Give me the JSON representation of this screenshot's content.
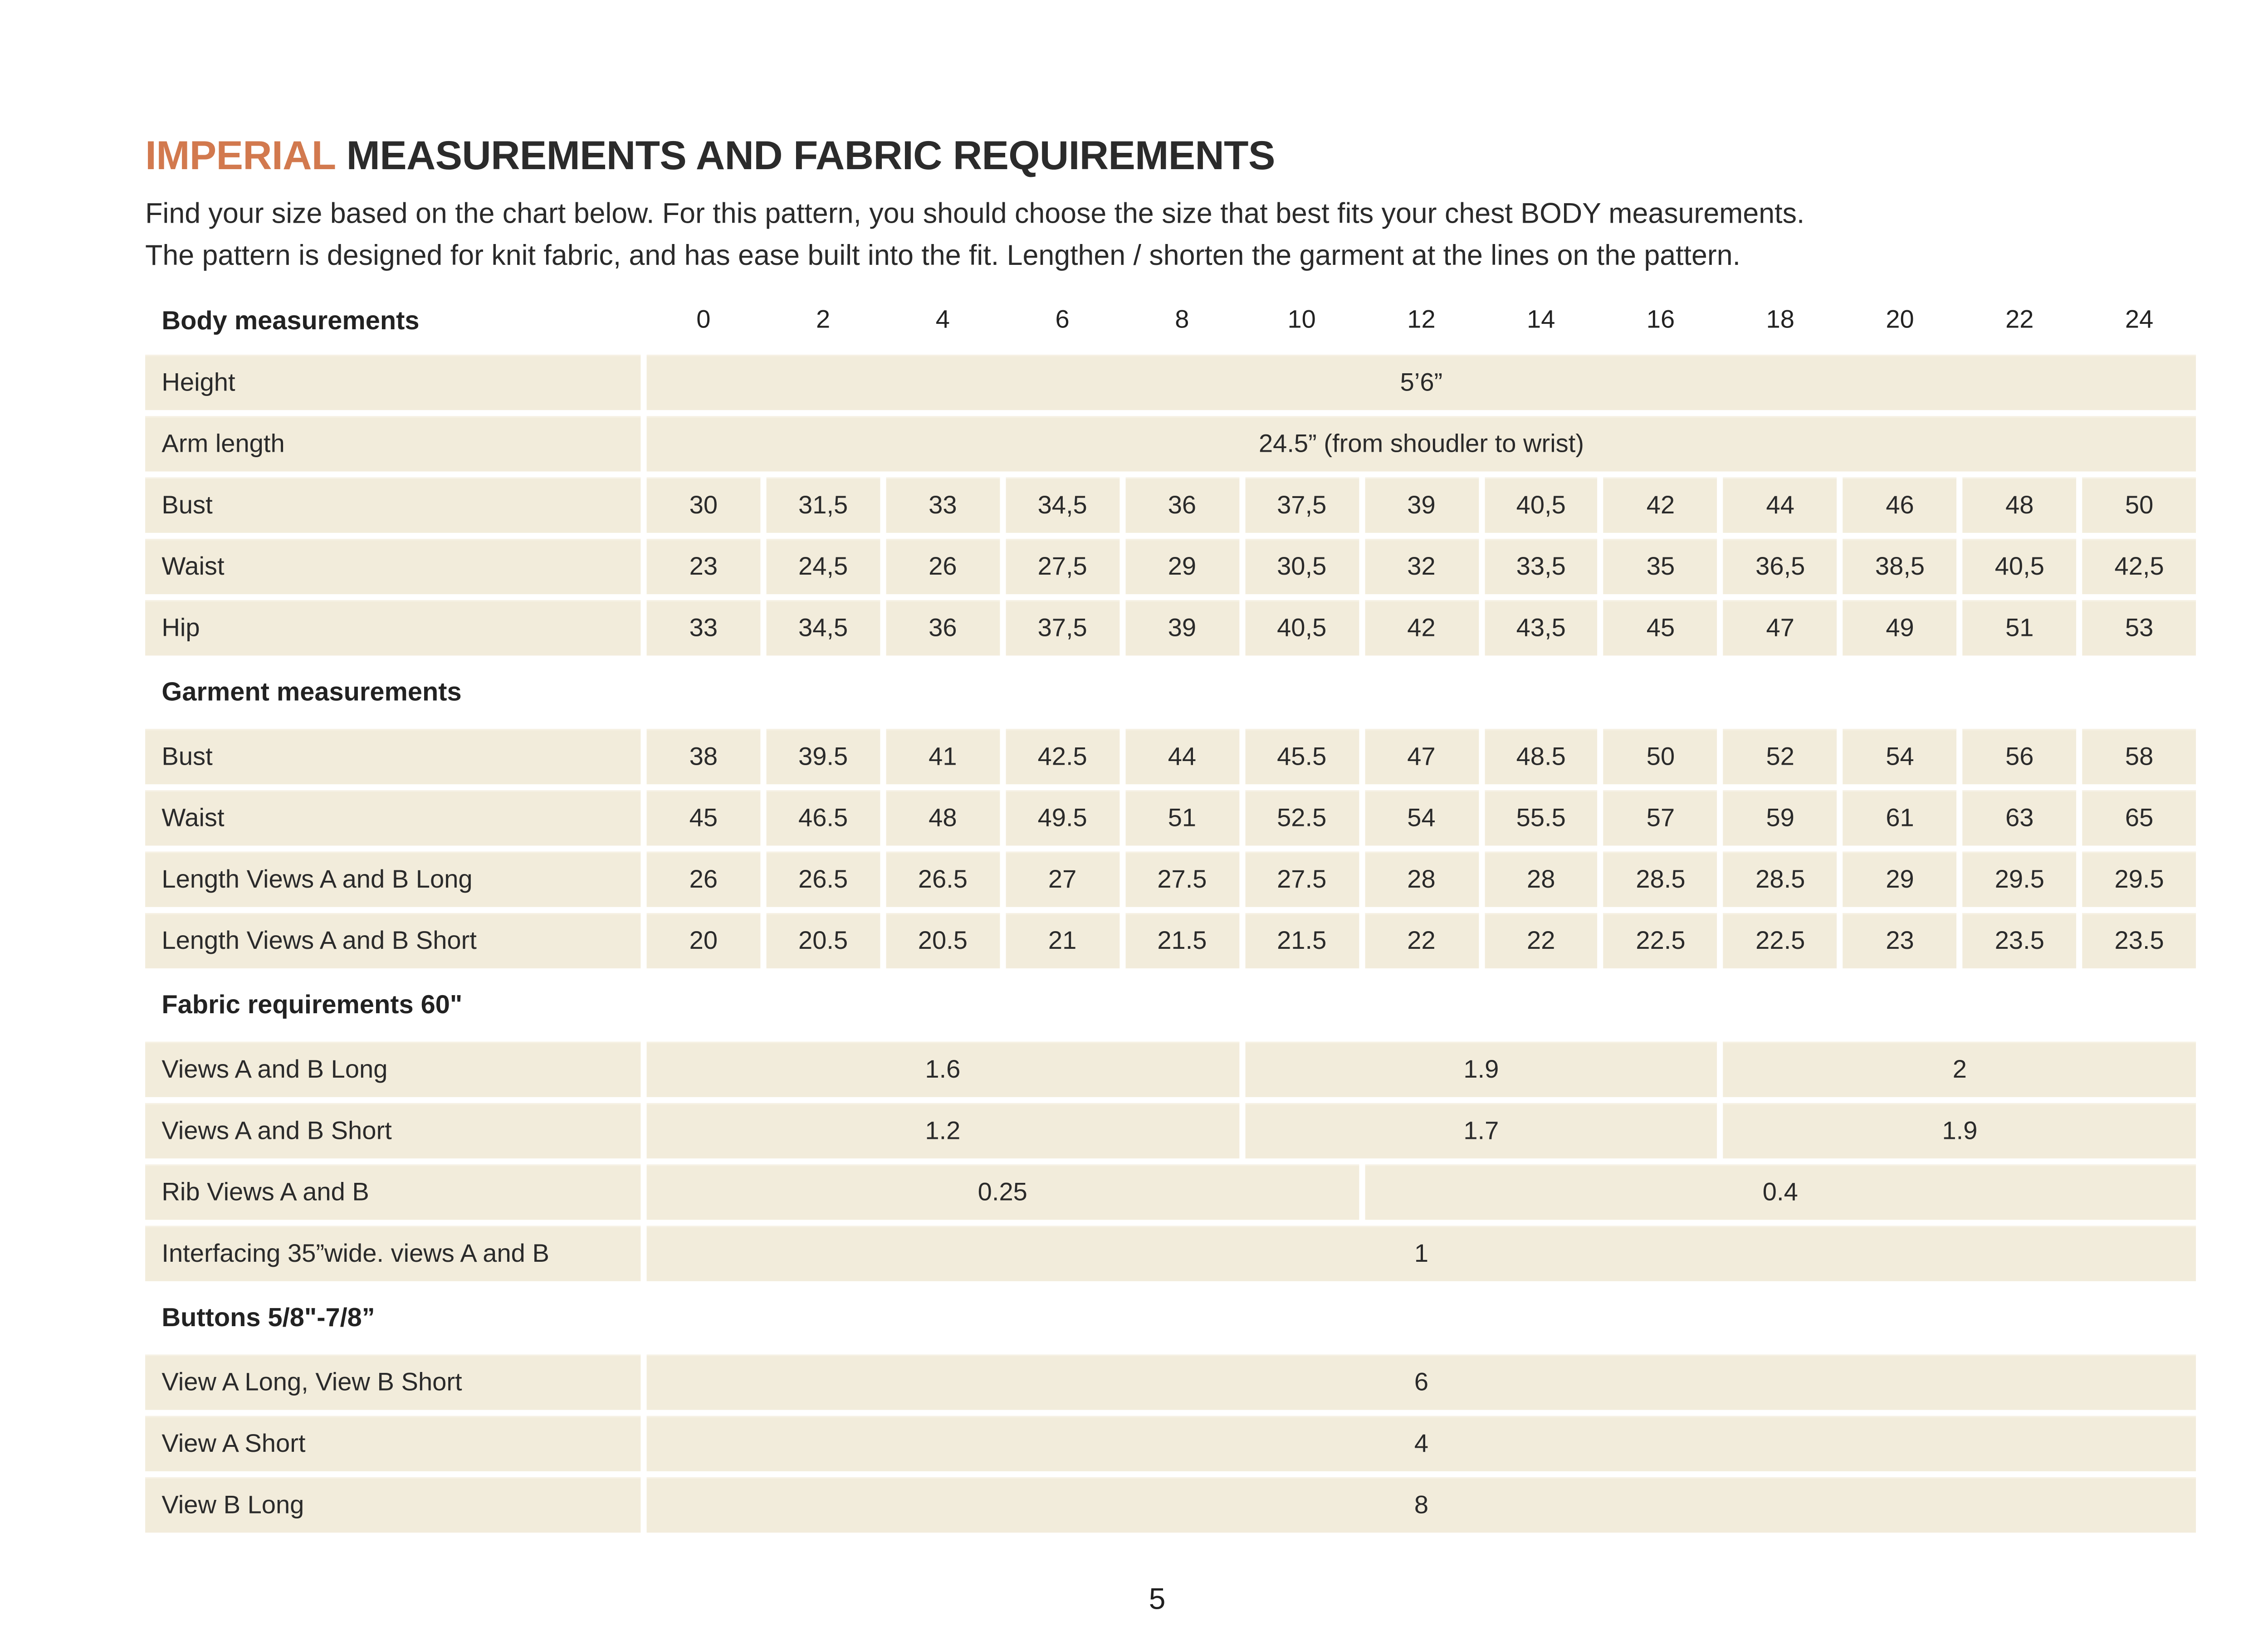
{
  "header": {
    "title_highlight": "IMPERIAL",
    "title_rest": "MEASUREMENTS AND FABRIC REQUIREMENTS",
    "intro_line1": "Find your size based on the chart below. For this pattern, you should choose the size that best fits your chest BODY measurements.",
    "intro_line2": "The pattern is designed for knit fabric, and has ease built into the fit. Lengthen / shorten the garment at the lines on the pattern."
  },
  "colors": {
    "accent_orange": "#d2794e",
    "cell_cream": "#f2ecdb",
    "text": "#1f1f1f"
  },
  "table": {
    "header": {
      "label": "Body measurements",
      "sizes": [
        "0",
        "2",
        "4",
        "6",
        "8",
        "10",
        "12",
        "14",
        "16",
        "18",
        "20",
        "22",
        "24"
      ]
    },
    "rows": [
      {
        "label": "Height",
        "cells": [
          {
            "text": "5’6”",
            "span": 13
          }
        ]
      },
      {
        "label": "Arm length",
        "cells": [
          {
            "text": "24.5” (from shoudler to wrist)",
            "span": 13
          }
        ]
      },
      {
        "label": "Bust",
        "cells": [
          {
            "text": "30"
          },
          {
            "text": "31,5"
          },
          {
            "text": "33"
          },
          {
            "text": "34,5"
          },
          {
            "text": "36"
          },
          {
            "text": "37,5"
          },
          {
            "text": "39"
          },
          {
            "text": "40,5"
          },
          {
            "text": "42"
          },
          {
            "text": "44"
          },
          {
            "text": "46"
          },
          {
            "text": "48"
          },
          {
            "text": "50"
          }
        ]
      },
      {
        "label": "Waist",
        "cells": [
          {
            "text": "23"
          },
          {
            "text": "24,5"
          },
          {
            "text": "26"
          },
          {
            "text": "27,5"
          },
          {
            "text": "29"
          },
          {
            "text": "30,5"
          },
          {
            "text": "32"
          },
          {
            "text": "33,5"
          },
          {
            "text": "35"
          },
          {
            "text": "36,5"
          },
          {
            "text": "38,5"
          },
          {
            "text": "40,5"
          },
          {
            "text": "42,5"
          }
        ]
      },
      {
        "label": "Hip",
        "cells": [
          {
            "text": "33"
          },
          {
            "text": "34,5"
          },
          {
            "text": "36"
          },
          {
            "text": "37,5"
          },
          {
            "text": "39"
          },
          {
            "text": "40,5"
          },
          {
            "text": "42"
          },
          {
            "text": "43,5"
          },
          {
            "text": "45"
          },
          {
            "text": "47"
          },
          {
            "text": "49"
          },
          {
            "text": "51"
          },
          {
            "text": "53"
          }
        ]
      },
      {
        "section": "Garment measurements"
      },
      {
        "label": "Bust",
        "cells": [
          {
            "text": "38"
          },
          {
            "text": "39.5"
          },
          {
            "text": "41"
          },
          {
            "text": "42.5"
          },
          {
            "text": "44"
          },
          {
            "text": "45.5"
          },
          {
            "text": "47"
          },
          {
            "text": "48.5"
          },
          {
            "text": "50"
          },
          {
            "text": "52"
          },
          {
            "text": "54"
          },
          {
            "text": "56"
          },
          {
            "text": "58"
          }
        ]
      },
      {
        "label": "Waist",
        "cells": [
          {
            "text": "45"
          },
          {
            "text": "46.5"
          },
          {
            "text": "48"
          },
          {
            "text": "49.5"
          },
          {
            "text": "51"
          },
          {
            "text": "52.5"
          },
          {
            "text": "54"
          },
          {
            "text": "55.5"
          },
          {
            "text": "57"
          },
          {
            "text": "59"
          },
          {
            "text": "61"
          },
          {
            "text": "63"
          },
          {
            "text": "65"
          }
        ]
      },
      {
        "label": "Length Views A and B Long",
        "cells": [
          {
            "text": "26"
          },
          {
            "text": "26.5"
          },
          {
            "text": "26.5"
          },
          {
            "text": "27"
          },
          {
            "text": "27.5"
          },
          {
            "text": "27.5"
          },
          {
            "text": "28"
          },
          {
            "text": "28"
          },
          {
            "text": "28.5"
          },
          {
            "text": "28.5"
          },
          {
            "text": "29"
          },
          {
            "text": "29.5"
          },
          {
            "text": "29.5"
          }
        ]
      },
      {
        "label": "Length Views A and B Short",
        "cells": [
          {
            "text": "20"
          },
          {
            "text": "20.5"
          },
          {
            "text": "20.5"
          },
          {
            "text": "21"
          },
          {
            "text": "21.5"
          },
          {
            "text": "21.5"
          },
          {
            "text": "22"
          },
          {
            "text": "22"
          },
          {
            "text": "22.5"
          },
          {
            "text": "22.5"
          },
          {
            "text": "23"
          },
          {
            "text": "23.5"
          },
          {
            "text": "23.5"
          }
        ]
      },
      {
        "section": "Fabric requirements 60\""
      },
      {
        "label": "Views A and B Long",
        "cells": [
          {
            "text": "1.6",
            "span": 5
          },
          {
            "text": "1.9",
            "span": 4
          },
          {
            "text": "2",
            "span": 4
          }
        ]
      },
      {
        "label": "Views A and B Short",
        "cells": [
          {
            "text": "1.2",
            "span": 5
          },
          {
            "text": "1.7",
            "span": 4
          },
          {
            "text": "1.9",
            "span": 4
          }
        ]
      },
      {
        "label": "Rib Views A and B",
        "cells": [
          {
            "text": "0.25",
            "span": 6
          },
          {
            "text": "0.4",
            "span": 7
          }
        ]
      },
      {
        "label": "Interfacing 35”wide. views A and B",
        "cells": [
          {
            "text": "1",
            "span": 13
          }
        ]
      },
      {
        "section": "Buttons 5/8\"-7/8”"
      },
      {
        "label": "View A Long, View B Short",
        "cells": [
          {
            "text": "6",
            "span": 13
          }
        ]
      },
      {
        "label": "View A Short",
        "cells": [
          {
            "text": "4",
            "span": 13
          }
        ]
      },
      {
        "label": "View B Long",
        "cells": [
          {
            "text": "8",
            "span": 13
          }
        ]
      }
    ]
  },
  "footer": {
    "page_number": "5"
  }
}
